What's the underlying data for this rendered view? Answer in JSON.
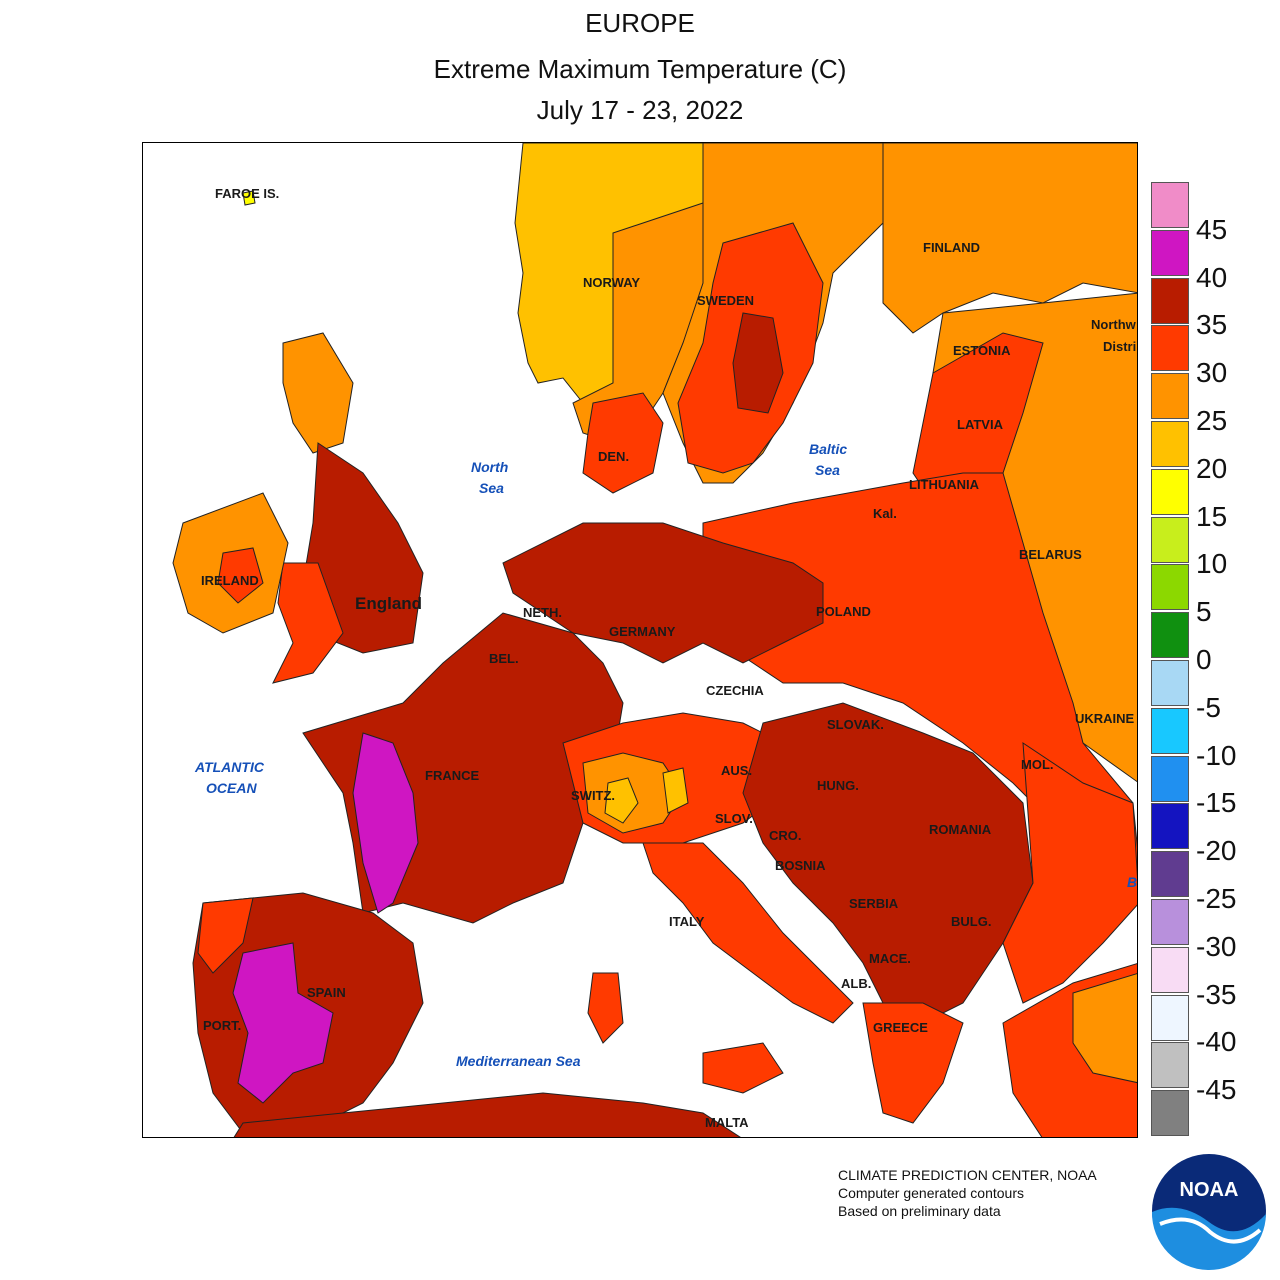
{
  "title": {
    "region": "EUROPE",
    "variable": "Extreme Maximum Temperature (C)",
    "period": "July 17 - 23, 2022"
  },
  "legend": {
    "ticks": [
      "45",
      "40",
      "35",
      "30",
      "25",
      "20",
      "15",
      "10",
      "5",
      "0",
      "-5",
      "-10",
      "-15",
      "-20",
      "-25",
      "-30",
      "-35",
      "-40",
      "-45"
    ],
    "colors": [
      "#f08cc8",
      "#cf16c2",
      "#b81c00",
      "#ff3a00",
      "#ff9300",
      "#ffc100",
      "#ffff00",
      "#c8ee1c",
      "#8cd800",
      "#109010",
      "#a8d8f4",
      "#18c8ff",
      "#2090f0",
      "#1414c0",
      "#603c90",
      "#b890dc",
      "#f8dcf4",
      "#eef6ff",
      "#c0c0c0",
      "#808080"
    ]
  },
  "map": {
    "country_labels": [
      "FAROE IS.",
      "NORWAY",
      "SWEDEN",
      "FINLAND",
      "ESTONIA",
      "LATVIA",
      "LITHUANIA",
      "Kal.",
      "BELARUS",
      "Northw",
      "Distri",
      "DEN.",
      "IRELAND",
      "England",
      "NETH.",
      "BEL.",
      "GERMANY",
      "POLAND",
      "CZECHIA",
      "SLOVAK.",
      "UKRAINE",
      "MOL.",
      "AUS.",
      "SWITZ.",
      "SLOV.",
      "HUNG.",
      "ROMANIA",
      "FRANCE",
      "CRO.",
      "BOSNIA",
      "SERBIA",
      "BULG.",
      "ITALY",
      "MACE.",
      "ALB.",
      "GREECE",
      "SPAIN",
      "PORT.",
      "MALTA",
      "B"
    ],
    "sea_labels": [
      "North",
      "Sea",
      "Baltic",
      "Sea",
      "ATLANTIC",
      "OCEAN",
      "Mediterranean Sea"
    ]
  },
  "credit": {
    "line1": "CLIMATE PREDICTION CENTER, NOAA",
    "line2": "Computer generated contours",
    "line3": "Based on preliminary data"
  },
  "logo": {
    "text": "NOAA",
    "icon": "noaa-logo-icon"
  }
}
